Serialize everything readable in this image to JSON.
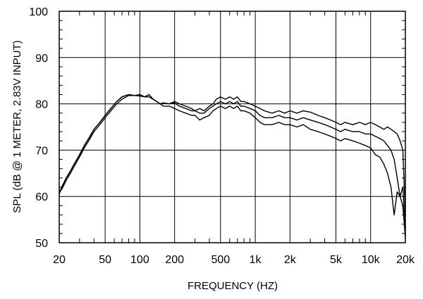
{
  "chart_data": {
    "type": "line",
    "title": "",
    "xlabel": "FREQUENCY  (HZ)",
    "ylabel": "SPL (dB @ 1 METER, 2.83V INPUT)",
    "x_scale": "log",
    "xlim": [
      20,
      20000
    ],
    "ylim": [
      50,
      100
    ],
    "grid": true,
    "legend": "none",
    "colors": {
      "line": "#000000",
      "grid": "#000000",
      "background": "#ffffff"
    },
    "x_ticks": [
      {
        "value": 20,
        "label": "20"
      },
      {
        "value": 50,
        "label": "50"
      },
      {
        "value": 100,
        "label": "100"
      },
      {
        "value": 200,
        "label": "200"
      },
      {
        "value": 500,
        "label": "500"
      },
      {
        "value": 1000,
        "label": "1k"
      },
      {
        "value": 2000,
        "label": "2k"
      },
      {
        "value": 5000,
        "label": "5k"
      },
      {
        "value": 10000,
        "label": "10k"
      },
      {
        "value": 20000,
        "label": "20k"
      }
    ],
    "y_ticks": [
      {
        "value": 50,
        "label": "50"
      },
      {
        "value": 60,
        "label": "60"
      },
      {
        "value": 70,
        "label": "70"
      },
      {
        "value": 80,
        "label": "80"
      },
      {
        "value": 90,
        "label": "90"
      },
      {
        "value": 100,
        "label": "100"
      }
    ],
    "series": [
      {
        "x": [
          20,
          21,
          22,
          23,
          25,
          27,
          30,
          33,
          36,
          40,
          45,
          50,
          56,
          63,
          70,
          80,
          90,
          100,
          110,
          120,
          130,
          140,
          150,
          160,
          180,
          200,
          220,
          250,
          280,
          300,
          330,
          360,
          400,
          430,
          460,
          500,
          550,
          600,
          650,
          700,
          750,
          800,
          900,
          1000,
          1100,
          1200,
          1400,
          1600,
          1800,
          2000,
          2300,
          2600,
          3000,
          3500,
          4000,
          4500,
          5000,
          5500,
          6000,
          7000,
          8000,
          9000,
          10000,
          11000,
          12000,
          13000,
          14000,
          15000,
          16000,
          17000,
          18000,
          19000,
          20000
        ],
        "y": [
          60.5,
          62,
          63,
          64,
          65.5,
          67,
          69,
          71,
          72.5,
          74.5,
          76,
          77.5,
          79,
          80.5,
          81.5,
          82,
          81.8,
          82,
          81.5,
          82,
          81,
          80.5,
          80,
          80.2,
          80,
          80.5,
          80,
          79.5,
          79,
          78.5,
          79,
          78.5,
          79.5,
          80,
          81,
          81.5,
          81,
          81.5,
          81,
          81.5,
          80.5,
          80.5,
          80,
          79.5,
          79,
          78.5,
          78,
          78.5,
          78,
          78.5,
          78,
          78.5,
          78.2,
          77.5,
          77,
          76.5,
          76,
          75.5,
          76,
          75.5,
          76,
          75.5,
          76,
          75.5,
          75,
          74.5,
          75,
          74.5,
          74,
          73.5,
          72,
          70,
          56
        ]
      },
      {
        "x": [
          20,
          21,
          22,
          23,
          25,
          27,
          30,
          33,
          36,
          40,
          45,
          50,
          56,
          63,
          70,
          80,
          90,
          100,
          110,
          120,
          130,
          140,
          150,
          160,
          180,
          200,
          220,
          250,
          280,
          300,
          330,
          360,
          400,
          430,
          460,
          500,
          550,
          600,
          650,
          700,
          750,
          800,
          900,
          1000,
          1100,
          1200,
          1400,
          1600,
          1800,
          2000,
          2300,
          2600,
          3000,
          3500,
          4000,
          4500,
          5000,
          5500,
          6000,
          7000,
          8000,
          9000,
          10000,
          11000,
          12000,
          13000,
          14000,
          15000,
          16000,
          17000,
          18000,
          19000,
          20000
        ],
        "y": [
          60.5,
          62,
          63,
          64,
          65.5,
          67,
          69,
          71,
          72.5,
          74.5,
          76,
          77.5,
          79,
          80.5,
          81.5,
          82,
          81.8,
          82,
          81.5,
          82,
          81,
          80.5,
          80,
          80.2,
          80,
          80.2,
          79.5,
          79,
          78.5,
          78.5,
          78,
          78,
          79,
          79.5,
          80,
          80.5,
          80,
          80.5,
          80,
          80.5,
          79.5,
          79.5,
          79,
          78.5,
          77.5,
          77,
          77,
          77.5,
          77,
          77,
          76.5,
          77,
          76.5,
          76,
          75.5,
          75,
          74.5,
          74,
          74.5,
          74,
          74,
          73.5,
          73.5,
          73,
          72.5,
          72,
          71,
          70,
          68,
          64,
          60,
          62,
          52
        ]
      },
      {
        "x": [
          20,
          21,
          22,
          23,
          25,
          27,
          30,
          33,
          36,
          40,
          45,
          50,
          56,
          63,
          70,
          80,
          90,
          100,
          110,
          120,
          130,
          140,
          150,
          160,
          180,
          200,
          220,
          250,
          280,
          300,
          330,
          360,
          400,
          430,
          460,
          500,
          550,
          600,
          650,
          700,
          750,
          800,
          900,
          1000,
          1100,
          1200,
          1400,
          1600,
          1800,
          2000,
          2300,
          2600,
          3000,
          3500,
          4000,
          4500,
          5000,
          5500,
          6000,
          7000,
          8000,
          9000,
          10000,
          11000,
          12000,
          13000,
          14000,
          15000,
          16000,
          17000,
          18000,
          19000,
          20000
        ],
        "y": [
          61,
          61.5,
          62.5,
          63.5,
          65,
          66.5,
          68.5,
          70.5,
          72,
          74,
          75.5,
          77,
          78.5,
          80,
          81,
          81.8,
          81.8,
          81.7,
          81.5,
          81.5,
          81,
          80.5,
          80,
          79.5,
          79.5,
          79,
          78.5,
          78,
          77.5,
          77.5,
          76.5,
          77,
          77.5,
          78.5,
          79,
          79.5,
          79,
          79.5,
          79,
          79.5,
          78.5,
          78.5,
          78,
          77,
          76,
          75.5,
          75.5,
          76,
          75.5,
          75.5,
          75,
          75.5,
          74.5,
          74,
          73.5,
          73,
          72.5,
          72,
          72.5,
          72,
          71.5,
          71,
          70.5,
          69,
          68.5,
          67,
          65,
          62,
          56,
          61,
          60,
          58,
          51
        ]
      }
    ]
  }
}
